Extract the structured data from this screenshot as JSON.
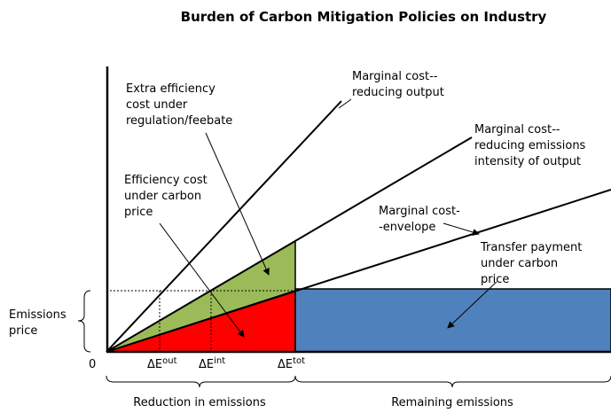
{
  "title": "Burden of Carbon Mitigation Policies on Industry",
  "labels": {
    "extra_efficiency": [
      "Extra efficiency",
      "cost under",
      "regulation/feebate"
    ],
    "mc_output": [
      "Marginal cost--",
      "reducing output"
    ],
    "mc_intensity": [
      "Marginal cost--",
      "reducing emissions",
      "intensity of output"
    ],
    "efficiency_cost": [
      "Efficiency cost",
      "under carbon",
      "price"
    ],
    "mc_envelope": [
      "Marginal cost-",
      "-envelope"
    ],
    "transfer": [
      "Transfer payment",
      "under carbon",
      "price"
    ],
    "emissions_price": [
      "Emissions",
      "price"
    ],
    "origin": "0",
    "reduction": "Reduction in emissions",
    "remaining": "Remaining emissions"
  },
  "ticks": [
    {
      "base": "ΔE",
      "sup": "out"
    },
    {
      "base": "ΔE",
      "sup": "int"
    },
    {
      "base": "ΔE",
      "sup": "tot"
    }
  ]
}
